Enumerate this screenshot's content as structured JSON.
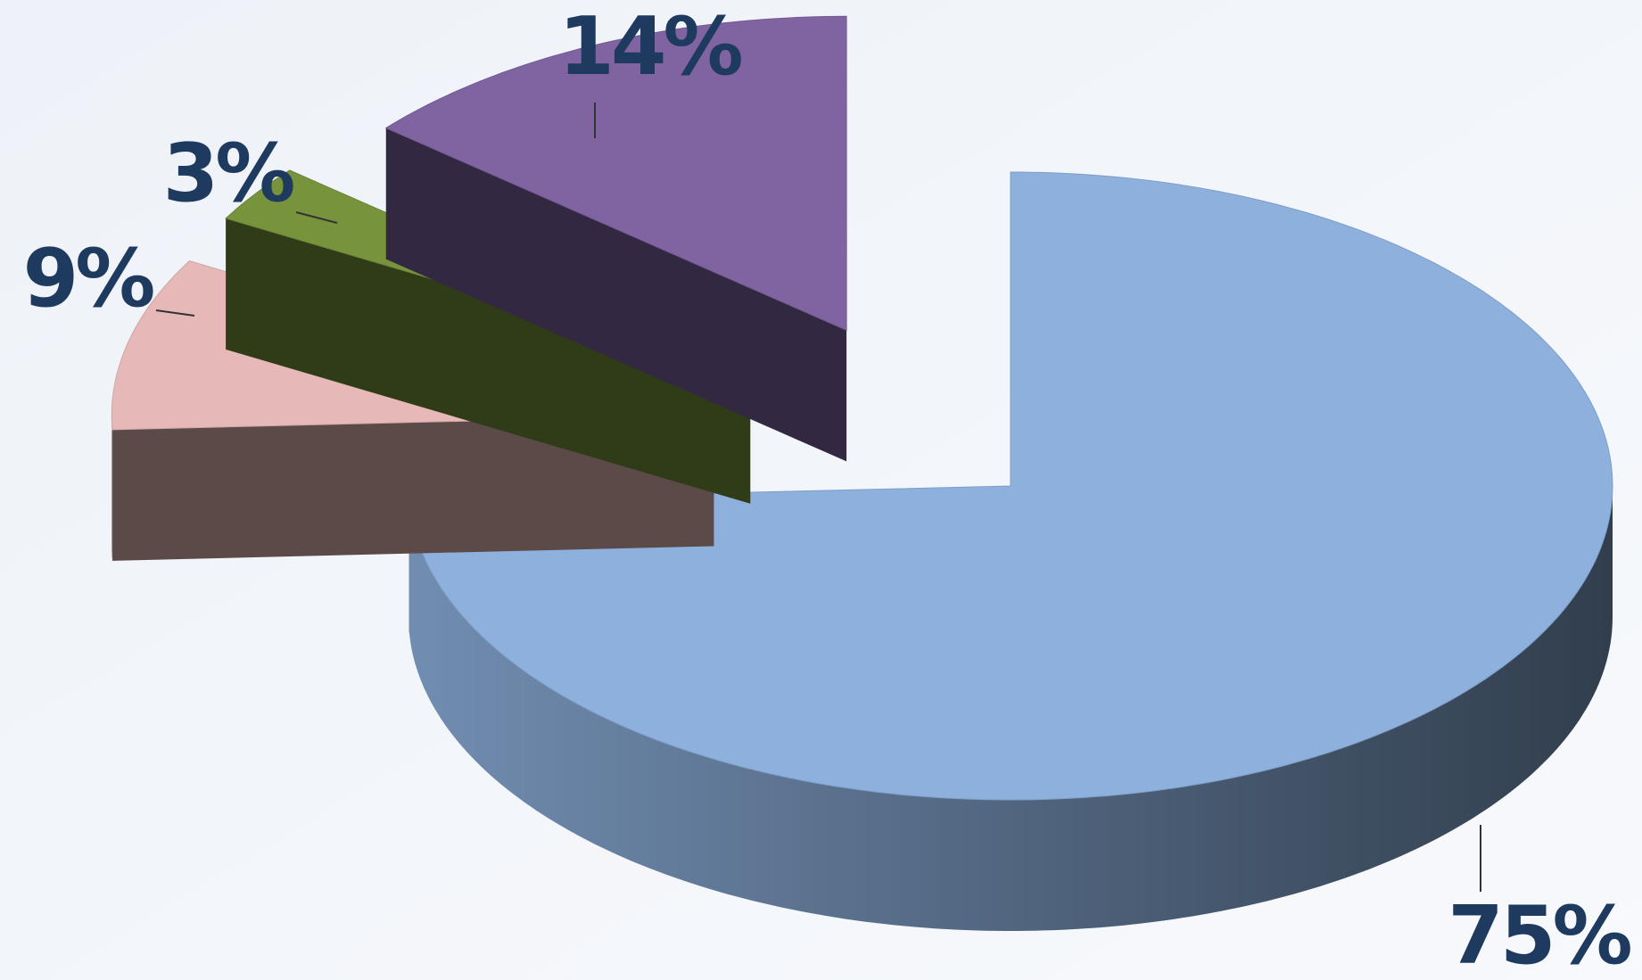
{
  "chart_data": {
    "type": "pie",
    "values": [
      75,
      9,
      3,
      14
    ],
    "value_labels": [
      "75%",
      "9%",
      "3%",
      "14%"
    ],
    "colors": [
      "#8db0dd",
      "#e6b8b7",
      "#77933c",
      "#8064a2"
    ]
  }
}
